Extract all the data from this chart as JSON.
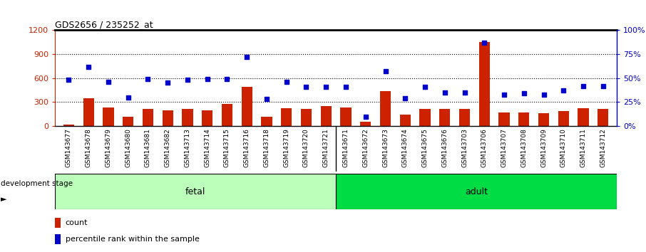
{
  "title": "GDS2656 / 235252_at",
  "categories": [
    "GSM143677",
    "GSM143678",
    "GSM143679",
    "GSM143680",
    "GSM143681",
    "GSM143682",
    "GSM143713",
    "GSM143714",
    "GSM143715",
    "GSM143716",
    "GSM143718",
    "GSM143719",
    "GSM143720",
    "GSM143721",
    "GSM143671",
    "GSM143672",
    "GSM143673",
    "GSM143674",
    "GSM143675",
    "GSM143676",
    "GSM143703",
    "GSM143706",
    "GSM143707",
    "GSM143708",
    "GSM143709",
    "GSM143710",
    "GSM143711",
    "GSM143712"
  ],
  "count_values": [
    15,
    350,
    235,
    115,
    210,
    200,
    215,
    195,
    275,
    490,
    115,
    220,
    215,
    250,
    235,
    50,
    440,
    145,
    215,
    215,
    215,
    1050,
    170,
    170,
    165,
    190,
    225,
    215
  ],
  "percentile_values": [
    48,
    62,
    46,
    30,
    49,
    45,
    48,
    49,
    49,
    72,
    28,
    46,
    41,
    41,
    41,
    10,
    57,
    29,
    41,
    35,
    35,
    87,
    33,
    34,
    33,
    37,
    42,
    42
  ],
  "fetal_count": 14,
  "adult_count": 14,
  "ylim_left": [
    0,
    1200
  ],
  "ylim_right": [
    0,
    100
  ],
  "left_yticks": [
    0,
    300,
    600,
    900,
    1200
  ],
  "right_yticks": [
    0,
    25,
    50,
    75,
    100
  ],
  "bar_color": "#cc2200",
  "dot_color": "#0000cc",
  "fetal_color": "#bbffbb",
  "adult_color": "#00dd44",
  "xtick_bg": "#cccccc",
  "xlabel_fetal": "fetal",
  "xlabel_adult": "adult",
  "legend_count": "count",
  "legend_percentile": "percentile rank within the sample",
  "development_stage_label": "development stage",
  "title_color": "#000000",
  "left_axis_color": "#cc2200",
  "right_axis_color": "#0000cc"
}
